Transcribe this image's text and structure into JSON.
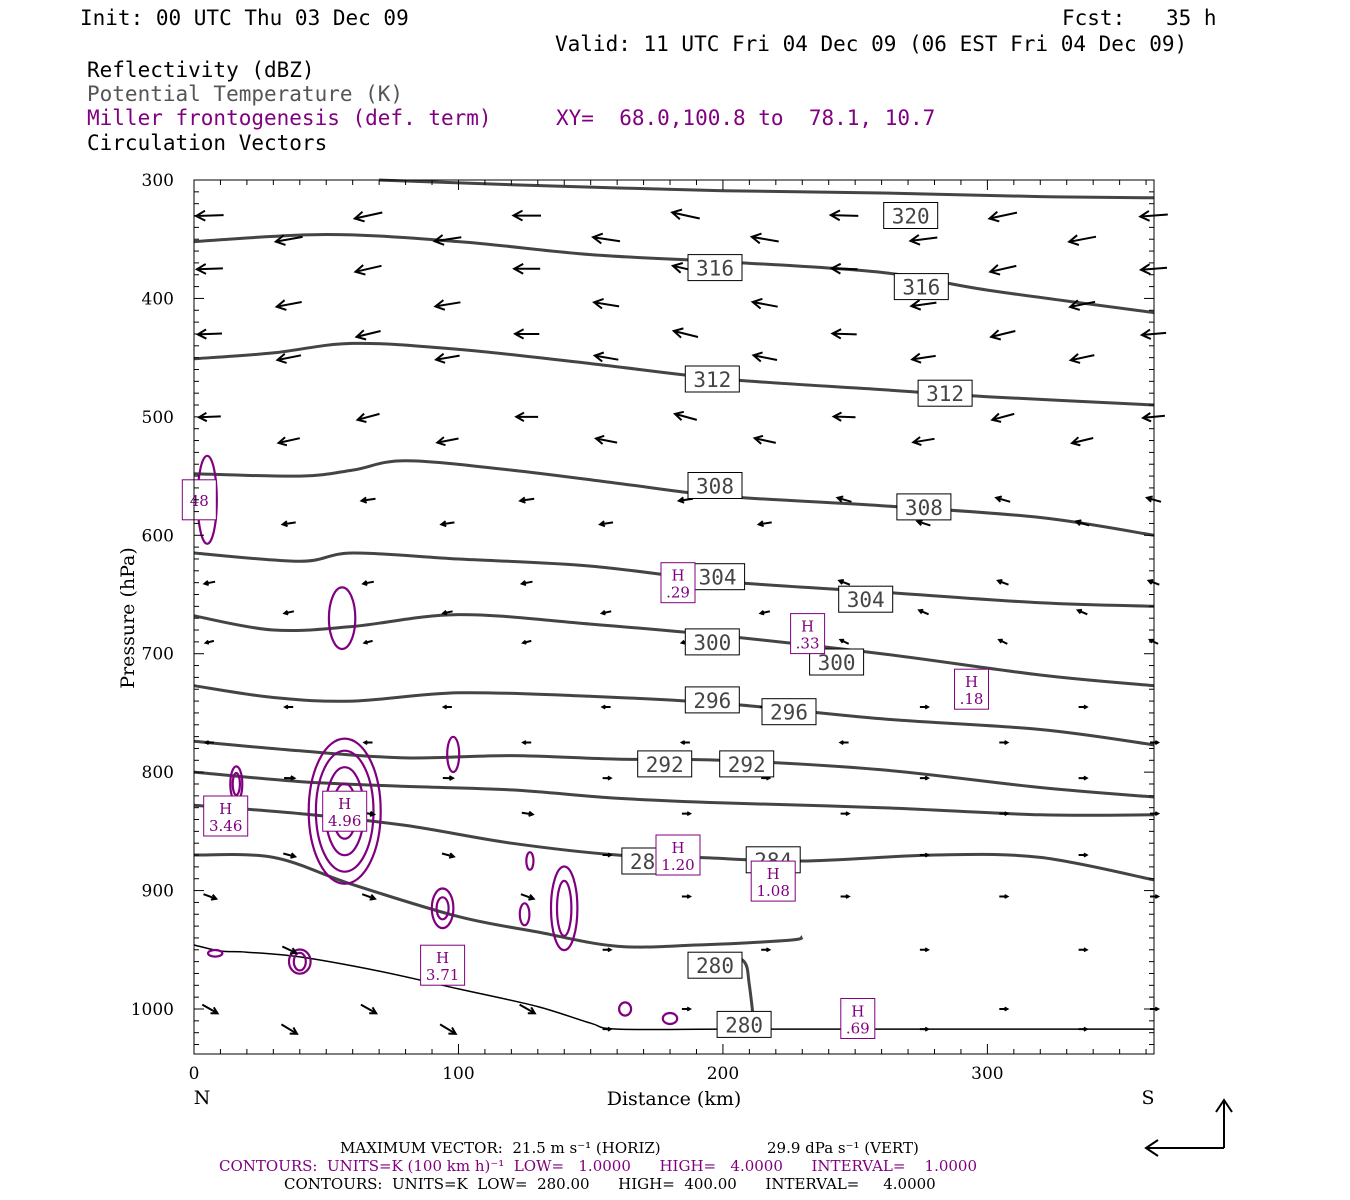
{
  "header": {
    "init": "Init: 00 UTC Thu 03 Dec 09",
    "fcst_label": "Fcst:",
    "fcst_value": "35 h",
    "valid": "Valid: 11 UTC Fri 04 Dec 09 (06 EST Fri 04 Dec 09)"
  },
  "legend": {
    "reflectivity": "Reflectivity (dBZ)",
    "theta": "Potential Temperature (K)",
    "frontogenesis": "Miller frontogenesis (def. term)",
    "xy": "XY=  68.0,100.8 to  78.1, 10.7",
    "vectors": "Circulation Vectors"
  },
  "colors": {
    "theta": "#444444",
    "frontogenesis": "#800080",
    "vectors": "#000000",
    "terrain": "#000000"
  },
  "footer": {
    "max_vector": "MAXIMUM VECTOR:  21.5 m s⁻¹ (HORIZ)",
    "max_vert": "29.9 dPa s⁻¹ (VERT)",
    "contours_fgen": "CONTOURS:  UNITS=K (100 km h)⁻¹  LOW=   1.0000      HIGH=   4.0000      INTERVAL=    1.0000",
    "contours_theta": "CONTOURS:  UNITS=K  LOW=  280.00      HIGH=  400.00      INTERVAL=     4.0000"
  },
  "chart_data": {
    "type": "cross-section",
    "xlabel": "Distance (km)",
    "ylabel": "Pressure (hPa)",
    "xlim": [
      0,
      363
    ],
    "ylim": [
      1038,
      300
    ],
    "x_ticks": [
      "0",
      "100",
      "200",
      "300"
    ],
    "y_ticks": [
      "300",
      "400",
      "500",
      "600",
      "700",
      "800",
      "900",
      "1000"
    ],
    "x_end_labels": {
      "left": "N",
      "right": "S"
    },
    "theta_contours": [
      {
        "level": "320",
        "points": [
          [
            70,
            300
          ],
          [
            120,
            304
          ],
          [
            200,
            309
          ],
          [
            260,
            311
          ],
          [
            320,
            314
          ],
          [
            363,
            315
          ]
        ]
      },
      {
        "level": "316",
        "points": [
          [
            0,
            352
          ],
          [
            50,
            346
          ],
          [
            100,
            352
          ],
          [
            150,
            363
          ],
          [
            200,
            369
          ],
          [
            260,
            378
          ],
          [
            300,
            393
          ],
          [
            363,
            412
          ]
        ]
      },
      {
        "level": "312",
        "points": [
          [
            0,
            451
          ],
          [
            30,
            446
          ],
          [
            60,
            438
          ],
          [
            100,
            443
          ],
          [
            150,
            455
          ],
          [
            200,
            468
          ],
          [
            260,
            477
          ],
          [
            300,
            483
          ],
          [
            363,
            490
          ]
        ]
      },
      {
        "level": "308",
        "points": [
          [
            0,
            548
          ],
          [
            40,
            550
          ],
          [
            60,
            545
          ],
          [
            80,
            537
          ],
          [
            120,
            545
          ],
          [
            160,
            556
          ],
          [
            200,
            567
          ],
          [
            260,
            575
          ],
          [
            320,
            585
          ],
          [
            363,
            600
          ]
        ]
      },
      {
        "level": "304",
        "points": [
          [
            0,
            615
          ],
          [
            40,
            622
          ],
          [
            60,
            615
          ],
          [
            100,
            620
          ],
          [
            150,
            626
          ],
          [
            200,
            639
          ],
          [
            260,
            648
          ],
          [
            320,
            657
          ],
          [
            363,
            660
          ]
        ]
      },
      {
        "level": "300",
        "points": [
          [
            0,
            668
          ],
          [
            30,
            680
          ],
          [
            60,
            677
          ],
          [
            100,
            667
          ],
          [
            150,
            675
          ],
          [
            200,
            685
          ],
          [
            260,
            700
          ],
          [
            320,
            718
          ],
          [
            363,
            727
          ]
        ]
      },
      {
        "level": "296",
        "points": [
          [
            0,
            727
          ],
          [
            30,
            737
          ],
          [
            60,
            740
          ],
          [
            100,
            733
          ],
          [
            150,
            736
          ],
          [
            200,
            742
          ],
          [
            260,
            755
          ],
          [
            320,
            764
          ],
          [
            363,
            777
          ]
        ]
      },
      {
        "level": "292",
        "points": [
          [
            0,
            774
          ],
          [
            40,
            782
          ],
          [
            80,
            788
          ],
          [
            120,
            786
          ],
          [
            160,
            789
          ],
          [
            200,
            790
          ],
          [
            260,
            798
          ],
          [
            320,
            813
          ],
          [
            363,
            821
          ]
        ]
      },
      {
        "level": "288",
        "points": [
          [
            0,
            800
          ],
          [
            40,
            808
          ],
          [
            80,
            812
          ],
          [
            120,
            815
          ],
          [
            160,
            822
          ],
          [
            200,
            826
          ],
          [
            260,
            830
          ],
          [
            320,
            836
          ],
          [
            363,
            836
          ]
        ]
      },
      {
        "level": "284",
        "points": [
          [
            0,
            828
          ],
          [
            40,
            835
          ],
          [
            80,
            845
          ],
          [
            120,
            860
          ],
          [
            160,
            870
          ],
          [
            190,
            872
          ],
          [
            230,
            875
          ],
          [
            280,
            870
          ],
          [
            320,
            872
          ],
          [
            363,
            891
          ]
        ]
      },
      {
        "level": "284b",
        "points": [
          [
            0,
            870
          ],
          [
            30,
            872
          ],
          [
            60,
            895
          ],
          [
            100,
            922
          ],
          [
            130,
            935
          ],
          [
            160,
            947
          ],
          [
            190,
            946
          ],
          [
            225,
            942
          ],
          [
            230,
            939
          ]
        ]
      },
      {
        "level": "280",
        "points": [
          [
            200,
            953
          ],
          [
            208,
            960
          ],
          [
            210,
            980
          ],
          [
            212,
            1018
          ]
        ]
      }
    ],
    "theta_labels": [
      {
        "text": "320",
        "x": 271,
        "p": 330
      },
      {
        "text": "316",
        "x": 197,
        "p": 374
      },
      {
        "text": "316",
        "x": 275,
        "p": 390
      },
      {
        "text": "312",
        "x": 196,
        "p": 468
      },
      {
        "text": "312",
        "x": 284,
        "p": 480
      },
      {
        "text": "308",
        "x": 197,
        "p": 558
      },
      {
        "text": "308",
        "x": 276,
        "p": 576
      },
      {
        "text": "304",
        "x": 198,
        "p": 635
      },
      {
        "text": "304",
        "x": 254,
        "p": 654
      },
      {
        "text": "300",
        "x": 196,
        "p": 690
      },
      {
        "text": "300",
        "x": 243,
        "p": 707
      },
      {
        "text": "296",
        "x": 196,
        "p": 739
      },
      {
        "text": "296",
        "x": 225,
        "p": 749
      },
      {
        "text": "292",
        "x": 178,
        "p": 793
      },
      {
        "text": "292",
        "x": 209,
        "p": 793
      },
      {
        "text": "284",
        "x": 172,
        "p": 875
      },
      {
        "text": "284",
        "x": 219,
        "p": 874
      },
      {
        "text": "280",
        "x": 197,
        "p": 963
      },
      {
        "text": "280",
        "x": 208,
        "p": 1013
      }
    ],
    "frontogenesis_maxima": [
      {
        "label": "H",
        "value": "4.96",
        "x": 57,
        "p": 833
      },
      {
        "label": "H",
        "value": "3.46",
        "x": 12,
        "p": 837
      },
      {
        "label": "H",
        "value": "3.71",
        "x": 94,
        "p": 963
      },
      {
        "label": "H",
        "value": "1.20",
        "x": 183,
        "p": 870
      },
      {
        "label": "H",
        "value": "1.08",
        "x": 219,
        "p": 892
      },
      {
        "label": "H",
        "value": ".29",
        "x": 183,
        "p": 640
      },
      {
        "label": "H",
        "value": ".33",
        "x": 232,
        "p": 683
      },
      {
        "label": "H",
        "value": ".18",
        "x": 294,
        "p": 730
      },
      {
        "label": "H",
        "value": ".69",
        "x": 251,
        "p": 1008
      },
      {
        "label": "",
        "value": "48",
        "x": 2,
        "p": 570
      }
    ],
    "terrain": [
      [
        0,
        946
      ],
      [
        10,
        951
      ],
      [
        20,
        952
      ],
      [
        40,
        956
      ],
      [
        70,
        968
      ],
      [
        100,
        983
      ],
      [
        130,
        998
      ],
      [
        150,
        1012
      ],
      [
        160,
        1017
      ],
      [
        200,
        1017
      ],
      [
        250,
        1017
      ],
      [
        300,
        1017
      ],
      [
        363,
        1017
      ]
    ]
  }
}
